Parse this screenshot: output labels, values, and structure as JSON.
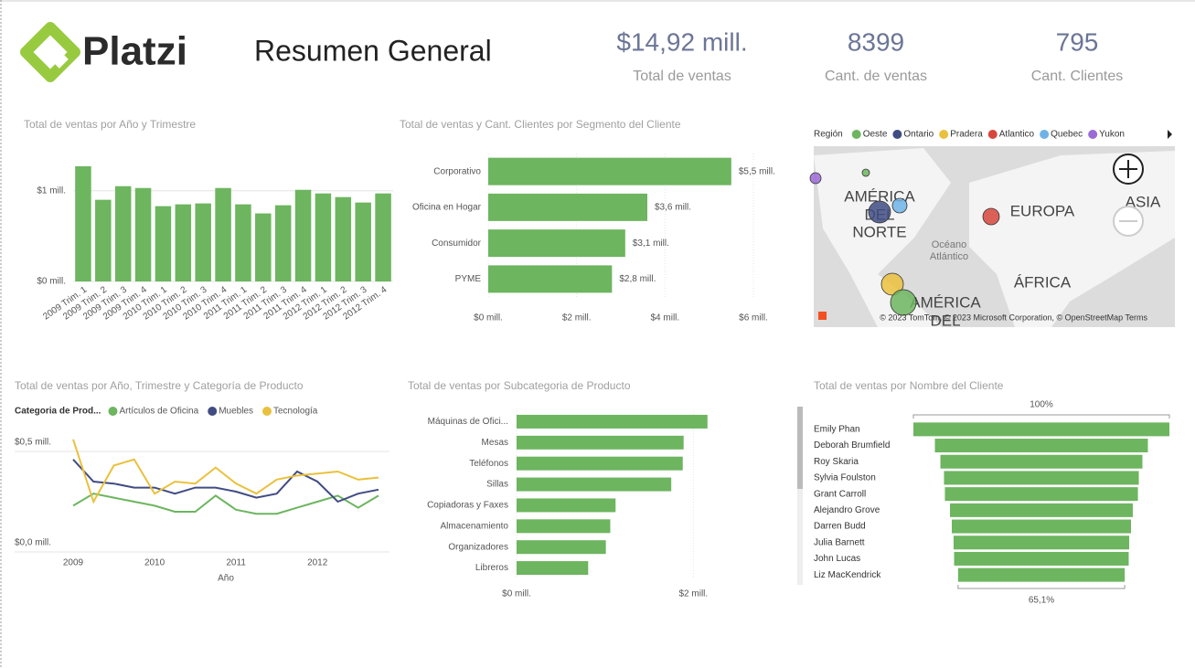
{
  "header": {
    "logo": "Platzi",
    "title": "Resumen General"
  },
  "kpis": [
    {
      "value": "$14,92 mill.",
      "label": "Total de ventas"
    },
    {
      "value": "8399",
      "label": "Cant. de ventas"
    },
    {
      "value": "795",
      "label": "Cant. Clientes"
    }
  ],
  "chart_data": [
    {
      "type": "bar",
      "title": "Total de ventas por Año y Trimestre",
      "categories": [
        "2009 Trim. 1",
        "2009 Trim. 2",
        "2009 Trim. 3",
        "2009 Trim. 4",
        "2010 Trim. 1",
        "2010 Trim. 2",
        "2010 Trim. 3",
        "2010 Trim. 4",
        "2011 Trim. 1",
        "2011 Trim. 2",
        "2011 Trim. 3",
        "2011 Trim. 4",
        "2012 Trim. 1",
        "2012 Trim. 2",
        "2012 Trim. 3",
        "2012 Trim. 4"
      ],
      "values": [
        1.27,
        0.9,
        1.05,
        1.03,
        0.83,
        0.85,
        0.86,
        1.03,
        0.85,
        0.75,
        0.84,
        1.01,
        0.97,
        0.93,
        0.87,
        0.97
      ],
      "color": "#6db55f",
      "ylim": [
        0,
        1.4
      ],
      "yticks": [
        {
          "value": 0,
          "label": "$0 mill."
        },
        {
          "value": 1,
          "label": "$1 mill."
        }
      ],
      "grid": true
    },
    {
      "type": "hbar",
      "title": "Total de ventas y Cant. Clientes por Segmento del Cliente",
      "categories": [
        "Corporativo",
        "Oficina en Hogar",
        "Consumidor",
        "PYME"
      ],
      "values": [
        5.5,
        3.6,
        3.1,
        2.8
      ],
      "value_labels": [
        "$5,5 mill.",
        "$3,6 mill.",
        "$3,1 mill.",
        "$2,8 mill."
      ],
      "color": "#6db55f",
      "xlim": [
        0,
        6.6
      ],
      "xticks": [
        {
          "value": 0,
          "label": "$0 mill."
        },
        {
          "value": 2,
          "label": "$2 mill."
        },
        {
          "value": 4,
          "label": "$4 mill."
        },
        {
          "value": 6,
          "label": "$6 mill."
        }
      ],
      "grid": true
    },
    {
      "type": "map",
      "legend_title": "Región",
      "series": [
        {
          "name": "Oeste",
          "color": "#6db55f"
        },
        {
          "name": "Ontario",
          "color": "#404c82"
        },
        {
          "name": "Pradera",
          "color": "#eac13d"
        },
        {
          "name": "Atlantico",
          "color": "#d6473c"
        },
        {
          "name": "Quebec",
          "color": "#6eb3e6"
        },
        {
          "name": "Yukon",
          "color": "#9a6bd6"
        }
      ],
      "labels": [
        "AMÉRICA",
        "DEL",
        "NORTE",
        "EUROPA",
        "ASIA",
        "ÁFRICA",
        "Océano",
        "Atlántico",
        "AMÉRICA",
        "DEL"
      ],
      "attribution": "© 2023 TomTom, © 2023 Microsoft Corporation, © OpenStreetMap Terms"
    },
    {
      "type": "line",
      "title": "Total de ventas por Año, Trimestre y Categoría de Producto",
      "legend_title": "Categoria de Prod...",
      "xlabel": "Año",
      "x": [
        2009,
        2009.25,
        2009.5,
        2009.75,
        2010,
        2010.25,
        2010.5,
        2010.75,
        2011,
        2011.25,
        2011.5,
        2011.75,
        2012,
        2012.25,
        2012.5,
        2012.75
      ],
      "xlim": [
        2009,
        2012.75
      ],
      "xticks": [
        2009,
        2010,
        2011,
        2012
      ],
      "ylim": [
        0,
        0.6
      ],
      "yticks": [
        {
          "value": 0,
          "label": "$0,0 mill."
        },
        {
          "value": 0.5,
          "label": "$0,5 mill."
        }
      ],
      "grid": true,
      "series": [
        {
          "name": "Artículos de Oficina",
          "color": "#6db55f",
          "values": [
            0.23,
            0.29,
            0.27,
            0.25,
            0.23,
            0.2,
            0.2,
            0.28,
            0.21,
            0.19,
            0.19,
            0.22,
            0.25,
            0.28,
            0.22,
            0.28
          ]
        },
        {
          "name": "Muebles",
          "color": "#404c82",
          "values": [
            0.46,
            0.35,
            0.34,
            0.32,
            0.32,
            0.29,
            0.32,
            0.32,
            0.3,
            0.27,
            0.29,
            0.4,
            0.35,
            0.25,
            0.29,
            0.31
          ]
        },
        {
          "name": "Tecnología",
          "color": "#eac13d",
          "values": [
            0.56,
            0.25,
            0.43,
            0.46,
            0.29,
            0.35,
            0.34,
            0.42,
            0.34,
            0.29,
            0.36,
            0.38,
            0.39,
            0.4,
            0.36,
            0.37
          ]
        }
      ]
    },
    {
      "type": "hbar",
      "title": "Total de ventas por Subcategoria de Producto",
      "categories": [
        "Máquinas de Ofici...",
        "Mesas",
        "Teléfonos",
        "Sillas",
        "Copiadoras y Faxes",
        "Almacenamiento",
        "Organizadores",
        "Libreros"
      ],
      "values": [
        2.16,
        1.89,
        1.88,
        1.75,
        1.12,
        1.06,
        1.01,
        0.81
      ],
      "color": "#6db55f",
      "xlim": [
        0,
        2.4
      ],
      "xticks": [
        {
          "value": 0,
          "label": "$0 mill."
        },
        {
          "value": 2,
          "label": "$2 mill."
        }
      ],
      "grid": true
    },
    {
      "type": "funnel",
      "title": "Total de ventas por Nombre del Cliente",
      "categories": [
        "Emily Phan",
        "Deborah Brumfield",
        "Roy Skaria",
        "Sylvia Foulston",
        "Grant Carroll",
        "Alejandro Grove",
        "Darren Budd",
        "Julia Barnett",
        "John Lucas",
        "Liz MacKendrick"
      ],
      "values": [
        100,
        83.2,
        78.9,
        76.1,
        75.4,
        71.4,
        70,
        68.6,
        68.2,
        65.1
      ],
      "top_label": "100%",
      "bottom_label": "65,1%",
      "color": "#6db55f"
    }
  ]
}
